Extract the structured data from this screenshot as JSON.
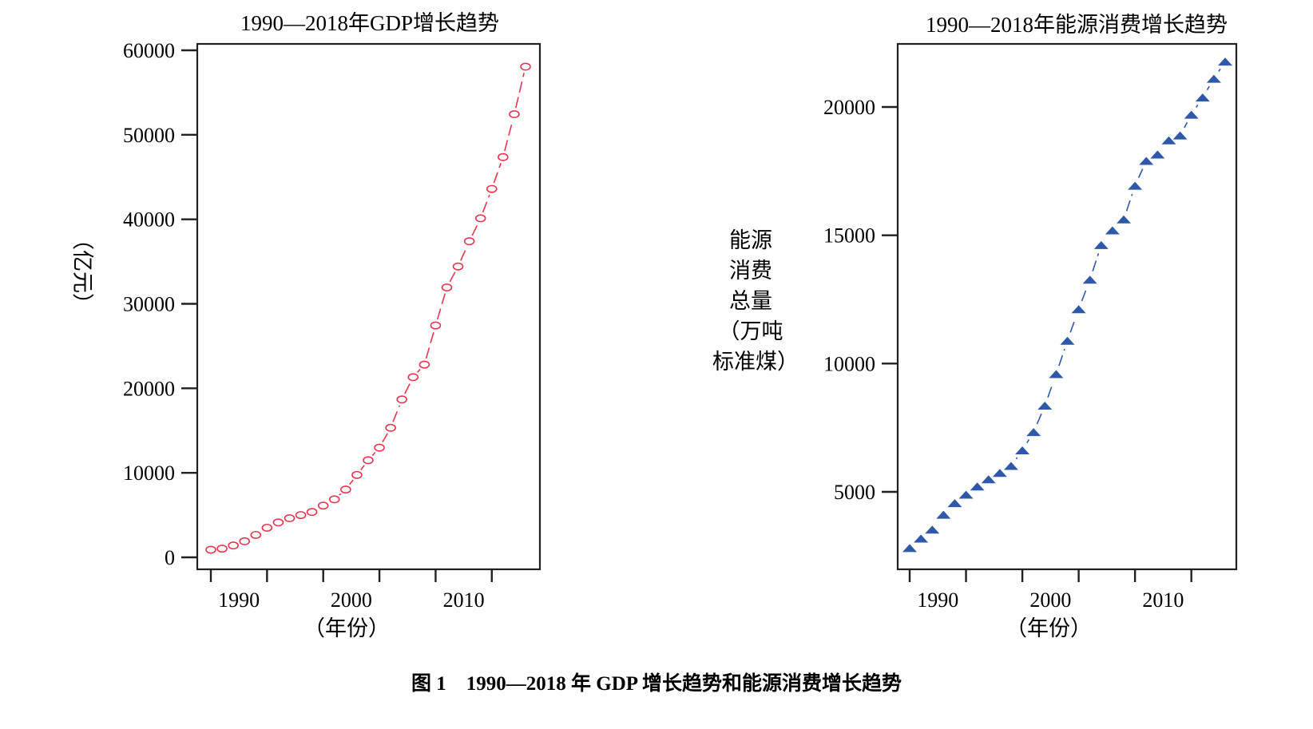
{
  "figure_caption": "图 1　1990—2018 年 GDP 增长趋势和能源消费增长趋势",
  "chart_data": [
    {
      "type": "line",
      "title": "1990—2018年GDP增长趋势",
      "xlabel": "（年份）",
      "ylabel": "（亿元）",
      "ylim": [
        0,
        60000
      ],
      "xlim": [
        1990,
        2018
      ],
      "yticks": [
        0,
        10000,
        20000,
        30000,
        40000,
        50000,
        60000
      ],
      "ytick_labels": [
        "0",
        "10000",
        "20000",
        "30000",
        "40000",
        "50000",
        "60000"
      ],
      "xticks": [
        1990,
        1995,
        2000,
        2005,
        2010,
        2015
      ],
      "xtick_labels": [
        "1990",
        "2000",
        "2010"
      ],
      "grid": false,
      "marker": "open-circle",
      "line_style": "dashed",
      "color": "#e8344e",
      "x": [
        1990,
        1991,
        1992,
        1993,
        1994,
        1995,
        1996,
        1997,
        1998,
        1999,
        2000,
        2001,
        2002,
        2003,
        2004,
        2005,
        2006,
        2007,
        2008,
        2009,
        2010,
        2011,
        2012,
        2013,
        2014,
        2015,
        2016,
        2017,
        2018
      ],
      "values": [
        900,
        1030,
        1400,
        1900,
        2650,
        3500,
        4130,
        4630,
        5000,
        5370,
        6120,
        6860,
        8020,
        9750,
        11490,
        12980,
        15330,
        18680,
        21320,
        22810,
        27440,
        31940,
        34420,
        37400,
        40120,
        43600,
        47360,
        52440,
        58060
      ]
    },
    {
      "type": "line",
      "title": "1990—2018年能源消费增长趋势",
      "xlabel": "（年份）",
      "ylabel_lines": [
        "能源",
        "消费",
        "总量",
        "（万吨",
        "标准煤）"
      ],
      "ylim": [
        2300,
        22700
      ],
      "xlim": [
        1990,
        2018
      ],
      "yticks": [
        5000,
        10000,
        15000,
        20000
      ],
      "ytick_labels": [
        "5000",
        "10000",
        "15000",
        "20000"
      ],
      "xticks": [
        1990,
        1995,
        2000,
        2005,
        2010,
        2015
      ],
      "xtick_labels": [
        "1990",
        "2000",
        "2010"
      ],
      "grid": false,
      "marker": "filled-triangle",
      "line_style": "dashed",
      "color": "#2f58a8",
      "x": [
        1990,
        1991,
        1992,
        1993,
        1994,
        1995,
        1996,
        1997,
        1998,
        1999,
        2000,
        2001,
        2002,
        2003,
        2004,
        2005,
        2006,
        2007,
        2008,
        2009,
        2010,
        2011,
        2012,
        2013,
        2014,
        2015,
        2016,
        2017,
        2018
      ],
      "values": [
        2810,
        3180,
        3530,
        4110,
        4560,
        4890,
        5210,
        5490,
        5740,
        6010,
        6620,
        7330,
        8360,
        9590,
        10890,
        12120,
        13270,
        14620,
        15190,
        15620,
        16930,
        17900,
        18150,
        18700,
        18890,
        19700,
        20370,
        21100,
        21770
      ]
    }
  ]
}
